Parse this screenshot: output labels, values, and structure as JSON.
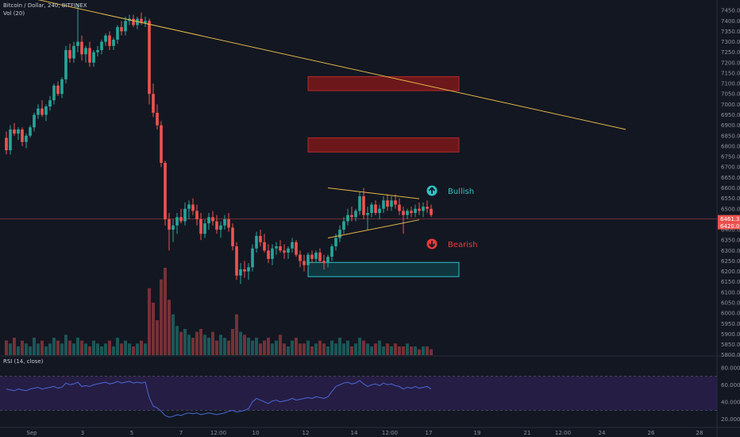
{
  "header": {
    "symbol": "Bitcoin / Dollar, 240, BITFINEX",
    "volume_label": "Vol (20)",
    "rsi_label": "RSI (14, close)"
  },
  "annotations": {
    "bullish": "Bullish",
    "bearish": "Bearish"
  },
  "colors": {
    "background": "#131722",
    "up": "#26a69a",
    "down": "#ef5350",
    "trendline": "#e0b64a",
    "resistance_zone": "#8b1a1a",
    "support_zone": "#2ec4c9",
    "rsi_line": "#4a67d6",
    "rsi_band": "#2a1f4a"
  },
  "chart_data": {
    "type": "candlestick",
    "title": "Bitcoin / Dollar, 240, BITFINEX",
    "price_axis": {
      "ylim": [
        5795,
        7500
      ],
      "ticks": [
        7450,
        7400,
        7350,
        7300,
        7250,
        7200,
        7150,
        7100,
        7050,
        7000,
        6950,
        6900,
        6850,
        6800,
        6750,
        6700,
        6650,
        6600,
        6550,
        6500,
        6450,
        6400,
        6350,
        6300,
        6250,
        6200,
        6150,
        6100,
        6050,
        6000,
        5950,
        5900,
        5850,
        5800
      ],
      "last_price_labels": [
        "6461.3",
        "6420.0"
      ]
    },
    "x_axis": {
      "labels": [
        "Sep",
        "3",
        "5",
        "7",
        "12:00",
        "10",
        "12",
        "14",
        "12:00",
        "17",
        "19",
        "21",
        "12:00",
        "24",
        "26",
        "28"
      ]
    },
    "candles": [
      [
        6840,
        6870,
        6760,
        6780
      ],
      [
        6780,
        6900,
        6760,
        6880
      ],
      [
        6880,
        6910,
        6850,
        6860
      ],
      [
        6860,
        6890,
        6830,
        6880
      ],
      [
        6880,
        6890,
        6800,
        6820
      ],
      [
        6820,
        6860,
        6790,
        6850
      ],
      [
        6850,
        6900,
        6840,
        6890
      ],
      [
        6890,
        6960,
        6870,
        6950
      ],
      [
        6950,
        7000,
        6930,
        6980
      ],
      [
        6980,
        7020,
        6940,
        6950
      ],
      [
        6950,
        7000,
        6920,
        6990
      ],
      [
        6990,
        7040,
        6970,
        7020
      ],
      [
        7020,
        7100,
        7000,
        7090
      ],
      [
        7090,
        7110,
        7040,
        7050
      ],
      [
        7050,
        7130,
        7030,
        7120
      ],
      [
        7120,
        7280,
        7100,
        7260
      ],
      [
        7260,
        7290,
        7200,
        7220
      ],
      [
        7220,
        7300,
        7200,
        7280
      ],
      [
        7280,
        7480,
        7250,
        7300
      ],
      [
        7300,
        7330,
        7210,
        7240
      ],
      [
        7240,
        7280,
        7200,
        7270
      ],
      [
        7270,
        7300,
        7180,
        7200
      ],
      [
        7200,
        7260,
        7180,
        7250
      ],
      [
        7250,
        7280,
        7230,
        7260
      ],
      [
        7260,
        7310,
        7240,
        7300
      ],
      [
        7300,
        7340,
        7280,
        7330
      ],
      [
        7330,
        7350,
        7260,
        7280
      ],
      [
        7280,
        7320,
        7260,
        7310
      ],
      [
        7310,
        7380,
        7290,
        7370
      ],
      [
        7370,
        7400,
        7330,
        7350
      ],
      [
        7350,
        7420,
        7330,
        7400
      ],
      [
        7400,
        7430,
        7380,
        7410
      ],
      [
        7410,
        7430,
        7370,
        7380
      ],
      [
        7380,
        7420,
        7360,
        7410
      ],
      [
        7410,
        7440,
        7380,
        7390
      ],
      [
        7390,
        7420,
        7370,
        7400
      ],
      [
        7400,
        7410,
        7000,
        7050
      ],
      [
        7050,
        7100,
        6940,
        6960
      ],
      [
        6960,
        7000,
        6880,
        6900
      ],
      [
        6900,
        6920,
        6700,
        6720
      ],
      [
        6720,
        6730,
        6420,
        6450
      ],
      [
        6450,
        6480,
        6300,
        6400
      ],
      [
        6400,
        6450,
        6340,
        6420
      ],
      [
        6420,
        6480,
        6380,
        6460
      ],
      [
        6460,
        6500,
        6430,
        6440
      ],
      [
        6440,
        6530,
        6420,
        6500
      ],
      [
        6500,
        6540,
        6450,
        6520
      ],
      [
        6520,
        6550,
        6470,
        6490
      ],
      [
        6490,
        6520,
        6420,
        6450
      ],
      [
        6450,
        6480,
        6350,
        6380
      ],
      [
        6380,
        6450,
        6360,
        6430
      ],
      [
        6430,
        6480,
        6400,
        6460
      ],
      [
        6460,
        6490,
        6420,
        6440
      ],
      [
        6440,
        6470,
        6380,
        6400
      ],
      [
        6400,
        6440,
        6360,
        6420
      ],
      [
        6420,
        6470,
        6400,
        6450
      ],
      [
        6450,
        6480,
        6390,
        6410
      ],
      [
        6410,
        6430,
        6300,
        6320
      ],
      [
        6320,
        6340,
        6160,
        6180
      ],
      [
        6180,
        6240,
        6140,
        6210
      ],
      [
        6210,
        6250,
        6170,
        6200
      ],
      [
        6200,
        6240,
        6160,
        6220
      ],
      [
        6220,
        6330,
        6200,
        6310
      ],
      [
        6310,
        6390,
        6290,
        6370
      ],
      [
        6370,
        6400,
        6320,
        6340
      ],
      [
        6340,
        6380,
        6290,
        6300
      ],
      [
        6300,
        6330,
        6240,
        6260
      ],
      [
        6260,
        6330,
        6230,
        6310
      ],
      [
        6310,
        6340,
        6280,
        6320
      ],
      [
        6320,
        6350,
        6290,
        6300
      ],
      [
        6300,
        6330,
        6260,
        6290
      ],
      [
        6290,
        6320,
        6260,
        6310
      ],
      [
        6310,
        6360,
        6290,
        6340
      ],
      [
        6340,
        6350,
        6270,
        6280
      ],
      [
        6280,
        6300,
        6220,
        6250
      ],
      [
        6250,
        6280,
        6200,
        6230
      ],
      [
        6230,
        6290,
        6220,
        6280
      ],
      [
        6280,
        6300,
        6240,
        6260
      ],
      [
        6260,
        6300,
        6240,
        6290
      ],
      [
        6290,
        6310,
        6240,
        6250
      ],
      [
        6250,
        6280,
        6210,
        6240
      ],
      [
        6240,
        6280,
        6220,
        6270
      ],
      [
        6270,
        6330,
        6250,
        6320
      ],
      [
        6320,
        6380,
        6300,
        6360
      ],
      [
        6360,
        6420,
        6340,
        6400
      ],
      [
        6400,
        6460,
        6380,
        6440
      ],
      [
        6440,
        6500,
        6420,
        6470
      ],
      [
        6470,
        6510,
        6440,
        6460
      ],
      [
        6460,
        6500,
        6440,
        6490
      ],
      [
        6490,
        6580,
        6470,
        6560
      ],
      [
        6560,
        6600,
        6450,
        6470
      ],
      [
        6470,
        6510,
        6400,
        6480
      ],
      [
        6480,
        6530,
        6460,
        6520
      ],
      [
        6520,
        6540,
        6470,
        6480
      ],
      [
        6480,
        6520,
        6450,
        6500
      ],
      [
        6500,
        6560,
        6480,
        6540
      ],
      [
        6540,
        6570,
        6490,
        6510
      ],
      [
        6510,
        6560,
        6490,
        6540
      ],
      [
        6540,
        6570,
        6500,
        6520
      ],
      [
        6520,
        6550,
        6470,
        6490
      ],
      [
        6490,
        6510,
        6380,
        6470
      ],
      [
        6470,
        6500,
        6450,
        6490
      ],
      [
        6490,
        6510,
        6460,
        6480
      ],
      [
        6480,
        6520,
        6460,
        6500
      ],
      [
        6500,
        6530,
        6470,
        6490
      ],
      [
        6490,
        6530,
        6460,
        6510
      ],
      [
        6510,
        6540,
        6480,
        6500
      ],
      [
        6500,
        6520,
        6460,
        6470
      ]
    ],
    "volume": {
      "label": "Vol (20)",
      "values": [
        5,
        4,
        6,
        3,
        5,
        4,
        3,
        6,
        4,
        5,
        3,
        4,
        6,
        5,
        4,
        7,
        5,
        4,
        6,
        5,
        4,
        3,
        5,
        4,
        3,
        4,
        5,
        3,
        6,
        4,
        5,
        4,
        3,
        4,
        5,
        4,
        23,
        18,
        12,
        26,
        30,
        19,
        14,
        10,
        8,
        9,
        7,
        6,
        8,
        9,
        7,
        6,
        8,
        5,
        7,
        6,
        5,
        9,
        14,
        8,
        7,
        6,
        5,
        6,
        4,
        5,
        6,
        4,
        5,
        7,
        4,
        3,
        5,
        6,
        4,
        4,
        5,
        3,
        4,
        5,
        4,
        3,
        5,
        4,
        6,
        4,
        5,
        3,
        4,
        6,
        5,
        4,
        3,
        4,
        5,
        3,
        4,
        3,
        4,
        3,
        3,
        4,
        3,
        3,
        2,
        3,
        3,
        2
      ]
    },
    "rsi": {
      "label": "RSI (14, close)",
      "ylim": [
        10,
        90
      ],
      "ticks": [
        80,
        60,
        40,
        20
      ],
      "band": [
        30,
        70
      ],
      "values": [
        55,
        54,
        53,
        55,
        54,
        53,
        55,
        56,
        57,
        55,
        56,
        57,
        58,
        56,
        57,
        62,
        60,
        61,
        63,
        58,
        59,
        58,
        60,
        61,
        62,
        63,
        61,
        62,
        64,
        62,
        63,
        64,
        62,
        63,
        62,
        63,
        45,
        35,
        33,
        29,
        24,
        22,
        23,
        25,
        24,
        26,
        27,
        26,
        27,
        25,
        26,
        27,
        26,
        25,
        26,
        27,
        29,
        30,
        28,
        29,
        30,
        32,
        40,
        44,
        42,
        40,
        38,
        41,
        42,
        40,
        41,
        42,
        44,
        42,
        43,
        44,
        45,
        44,
        46,
        45,
        44,
        46,
        52,
        58,
        60,
        62,
        63,
        61,
        62,
        65,
        61,
        58,
        60,
        61,
        59,
        62,
        60,
        61,
        59,
        58,
        55,
        57,
        56,
        58,
        56,
        57,
        58,
        55
      ]
    },
    "trendlines": [
      {
        "x": [
          0,
          156
        ],
        "y": [
          7535,
          6880
        ]
      },
      {
        "x": [
          81,
          104
        ],
        "y": [
          6600,
          6548
        ]
      },
      {
        "x": [
          81,
          104
        ],
        "y": [
          6360,
          6447
        ]
      }
    ],
    "zones": [
      {
        "x": [
          76,
          114
        ],
        "y": [
          7066,
          7133
        ],
        "kind": "resistance"
      },
      {
        "x": [
          76,
          114
        ],
        "y": [
          6772,
          6840
        ],
        "kind": "resistance"
      },
      {
        "x": [
          76,
          114
        ],
        "y": [
          6175,
          6243
        ],
        "kind": "support"
      }
    ],
    "horizontal_line": 6451
  }
}
